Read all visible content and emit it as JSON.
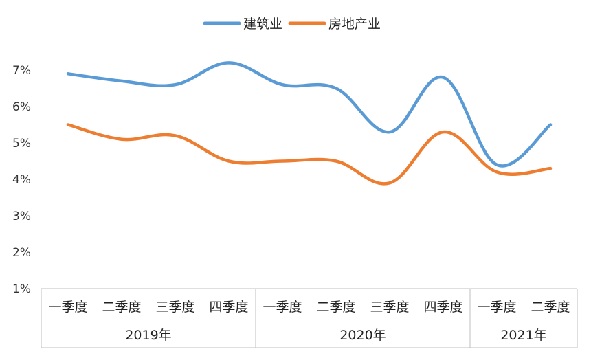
{
  "chart_data": {
    "type": "line",
    "title": "",
    "xlabel": "",
    "ylabel": "",
    "ylim": [
      0.01,
      0.08
    ],
    "yticks": [
      "1%",
      "2%",
      "3%",
      "4%",
      "5%",
      "6%",
      "7%"
    ],
    "groups": [
      {
        "label": "2019年",
        "categories": [
          "一季度",
          "二季度",
          "三季度",
          "四季度"
        ]
      },
      {
        "label": "2020年",
        "categories": [
          "一季度",
          "二季度",
          "三季度",
          "四季度"
        ]
      },
      {
        "label": "2021年",
        "categories": [
          "一季度",
          "二季度"
        ]
      }
    ],
    "legend_position": "top-center",
    "series": [
      {
        "name": "建筑业",
        "color": "#5B9BD5",
        "values": [
          0.069,
          0.067,
          0.066,
          0.072,
          0.066,
          0.065,
          0.053,
          0.068,
          0.044,
          0.055
        ]
      },
      {
        "name": "房地产业",
        "color": "#ED7D31",
        "values": [
          0.055,
          0.051,
          0.052,
          0.045,
          0.045,
          0.045,
          0.039,
          0.053,
          0.042,
          0.043
        ]
      }
    ]
  }
}
